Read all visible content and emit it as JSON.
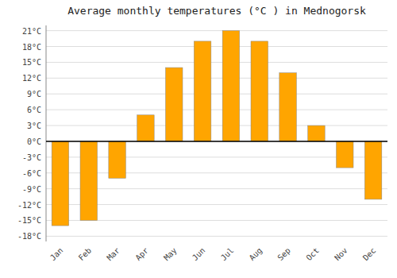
{
  "chart_data": {
    "type": "bar",
    "title": "Average monthly temperatures (°C ) in Mednogorsk",
    "categories": [
      "Jan",
      "Feb",
      "Mar",
      "Apr",
      "May",
      "Jun",
      "Jul",
      "Aug",
      "Sep",
      "Oct",
      "Nov",
      "Dec"
    ],
    "values": [
      -16,
      -15,
      -7,
      5,
      14,
      19,
      21,
      19,
      13,
      3,
      -5,
      -11
    ],
    "color": "#FFA500",
    "ylim": [
      -19,
      22
    ],
    "yticks": [
      {
        "value": -18,
        "label": "-18°C"
      },
      {
        "value": -15,
        "label": "-15°C"
      },
      {
        "value": -12,
        "label": "-12°C"
      },
      {
        "value": -9,
        "label": "-9°C"
      },
      {
        "value": -6,
        "label": "-6°C"
      },
      {
        "value": -3,
        "label": "-3°C"
      },
      {
        "value": 0,
        "label": "0°C"
      },
      {
        "value": 3,
        "label": "3°C"
      },
      {
        "value": 6,
        "label": "6°C"
      },
      {
        "value": 9,
        "label": "9°C"
      },
      {
        "value": 12,
        "label": "12°C"
      },
      {
        "value": 15,
        "label": "15°C"
      },
      {
        "value": 18,
        "label": "18°C"
      },
      {
        "value": 21,
        "label": "21°C"
      }
    ],
    "grid": true
  }
}
